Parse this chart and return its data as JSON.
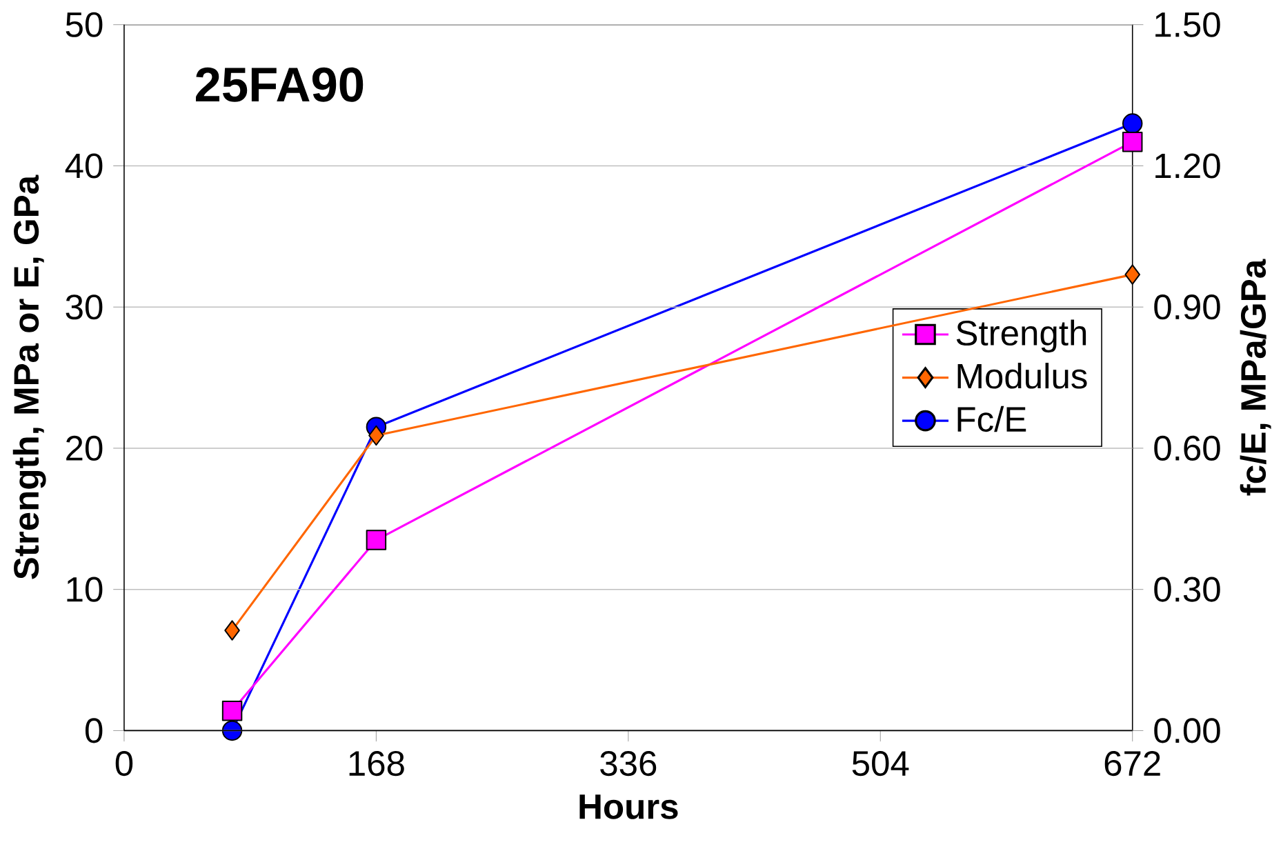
{
  "chart_data": {
    "type": "line",
    "title": "25FA90",
    "xlabel": "Hours",
    "ylabel": "Strength, MPa or E, GPa",
    "y2label": "fc/E, MPa/GPa",
    "x": [
      72,
      168,
      672
    ],
    "series": [
      {
        "name": "Strength",
        "color": "#ff00ff",
        "marker": "square",
        "values": [
          1.4,
          13.5,
          41.7
        ]
      },
      {
        "name": "Modulus",
        "color": "#ff6600",
        "marker": "diamond",
        "values": [
          7.1,
          20.9,
          32.3
        ]
      },
      {
        "name": "Fc/E",
        "color": "#0000ff",
        "marker": "circle",
        "axis": "y2",
        "values": [
          0.0,
          0.645,
          1.29
        ]
      }
    ],
    "xlim": [
      0,
      672
    ],
    "xticks": [
      0,
      168,
      336,
      504,
      672
    ],
    "ylim": [
      0,
      50
    ],
    "yticks": [
      0,
      10,
      20,
      30,
      40,
      50
    ],
    "y2lim": [
      0,
      1.5
    ],
    "y2ticks": [
      {
        "value": 0,
        "label": "0.00"
      },
      {
        "value": 0.3,
        "label": "0.30"
      },
      {
        "value": 0.6,
        "label": "0.60"
      },
      {
        "value": 0.9,
        "label": "0.90"
      },
      {
        "value": 1.2,
        "label": "1.20"
      },
      {
        "value": 1.5,
        "label": "1.50"
      }
    ],
    "grid": "y",
    "legend": "right",
    "line_style": "solid"
  }
}
